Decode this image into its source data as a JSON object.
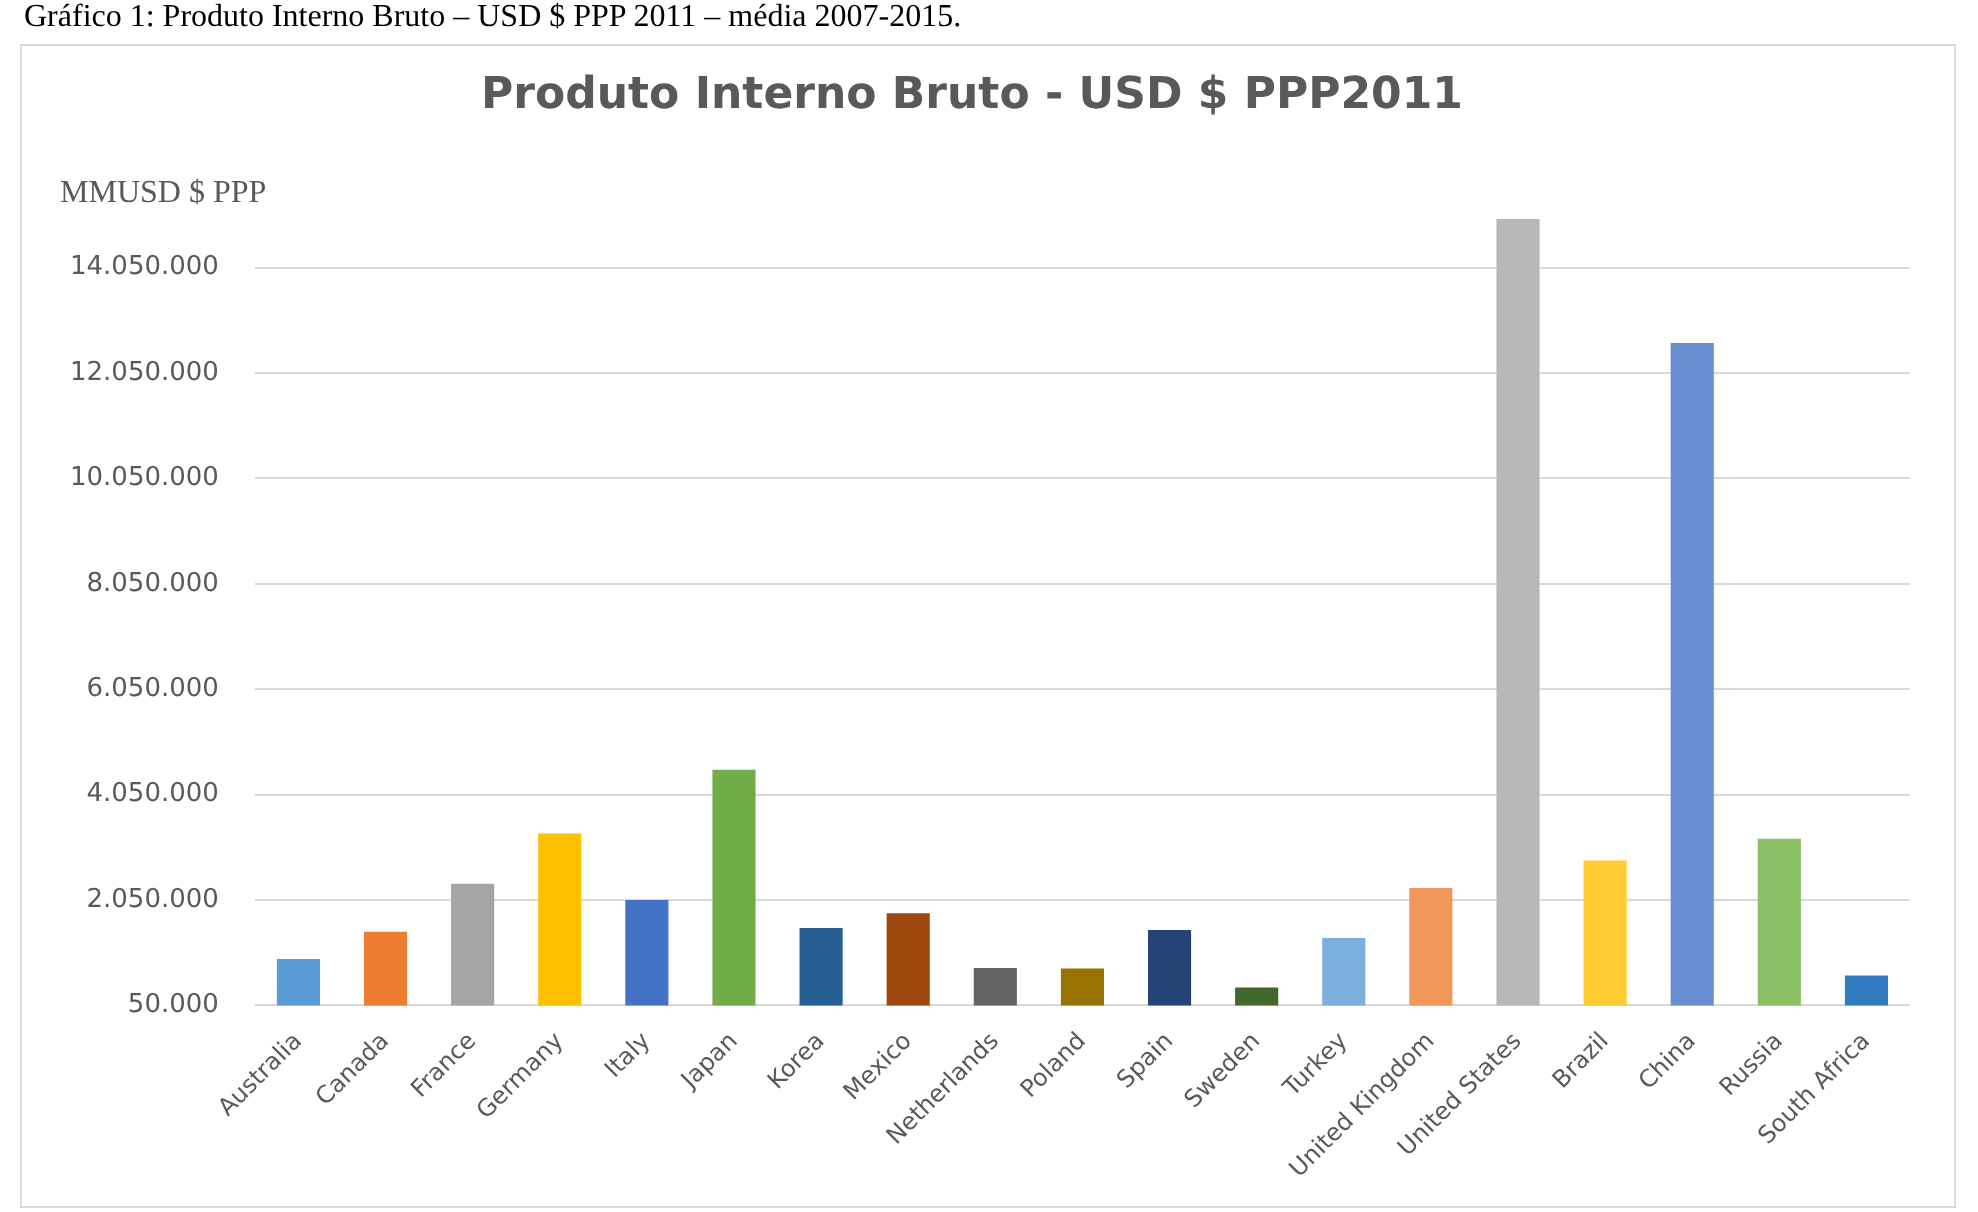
{
  "chart_data": {
    "type": "bar",
    "title": "Produto Interno Bruto - USD $ PPP2011",
    "ylabel": "MMUSD $ PPP",
    "annotations": [
      "Gráfico 1: Produto Interno Bruto – USD $ PPP 2011 – média 2007-2015."
    ],
    "categories": [
      "Australia",
      "Canada",
      "France",
      "Germany",
      "Italy",
      "Japan",
      "Korea",
      "Mexico",
      "Netherlands",
      "Poland",
      "Spain",
      "Sweden",
      "Turkey",
      "United Kingdom",
      "United States",
      "Brazil",
      "China",
      "Russia",
      "South Africa"
    ],
    "values": [
      930000,
      1450000,
      2360000,
      3310000,
      2050000,
      4520000,
      1520000,
      1800000,
      760000,
      750000,
      1480000,
      390000,
      1330000,
      2280000,
      14970000,
      2800000,
      12620000,
      3210000,
      620000
    ],
    "colors": [
      "#5b9bd5",
      "#ed7d31",
      "#a5a5a5",
      "#ffc000",
      "#4472c4",
      "#70ad47",
      "#255e91",
      "#9e480e",
      "#636363",
      "#997300",
      "#264478",
      "#43682b",
      "#7cafdd",
      "#f1975a",
      "#b7b7b7",
      "#ffcd33",
      "#698ed0",
      "#8cc168",
      "#327dc2"
    ],
    "ylim": [
      50000,
      15050000
    ],
    "yticks": [
      {
        "value": 50000,
        "label": "50.000"
      },
      {
        "value": 2050000,
        "label": "2.050.000"
      },
      {
        "value": 4050000,
        "label": "4.050.000"
      },
      {
        "value": 6050000,
        "label": "6.050.000"
      },
      {
        "value": 8050000,
        "label": "8.050.000"
      },
      {
        "value": 10050000,
        "label": "10.050.000"
      },
      {
        "value": 12050000,
        "label": "12.050.000"
      },
      {
        "value": 14050000,
        "label": "14.050.000"
      }
    ],
    "grid": "y",
    "legend": false
  }
}
